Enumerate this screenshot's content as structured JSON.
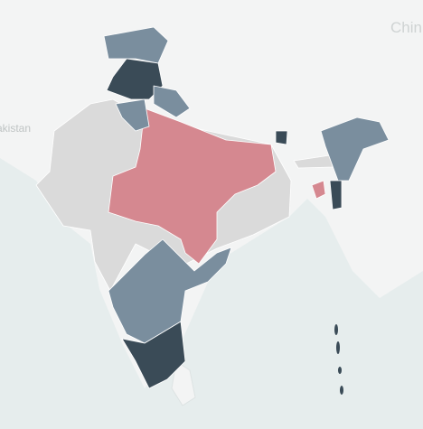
{
  "map": {
    "labels": [
      "Chin",
      "akistan"
    ]
  }
}
